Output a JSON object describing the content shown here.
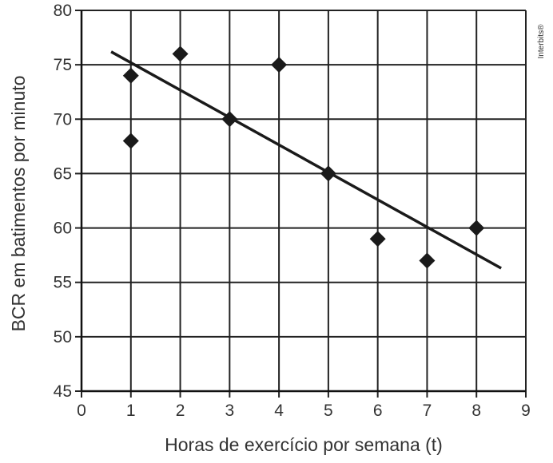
{
  "chart_data": {
    "type": "scatter",
    "title": "",
    "xlabel": "Horas de exercício por semana (t)",
    "ylabel": "BCR em batimentos por minuto",
    "xlim": [
      0,
      9
    ],
    "ylim": [
      45,
      80
    ],
    "x_ticks": [
      0,
      1,
      2,
      3,
      4,
      5,
      6,
      7,
      8,
      9
    ],
    "y_ticks": [
      45,
      50,
      55,
      60,
      65,
      70,
      75,
      80
    ],
    "grid": true,
    "marker": "diamond",
    "marker_color": "#1a1a1a",
    "points": [
      {
        "x": 1,
        "y": 74
      },
      {
        "x": 1,
        "y": 68
      },
      {
        "x": 2,
        "y": 76
      },
      {
        "x": 3,
        "y": 70
      },
      {
        "x": 4,
        "y": 75
      },
      {
        "x": 5,
        "y": 65
      },
      {
        "x": 6,
        "y": 59
      },
      {
        "x": 7,
        "y": 57
      },
      {
        "x": 8,
        "y": 60
      }
    ],
    "trend_line": {
      "x1": 0.6,
      "y1": 76.2,
      "x2": 8.5,
      "y2": 56.3
    }
  },
  "credit": "Interbits®"
}
